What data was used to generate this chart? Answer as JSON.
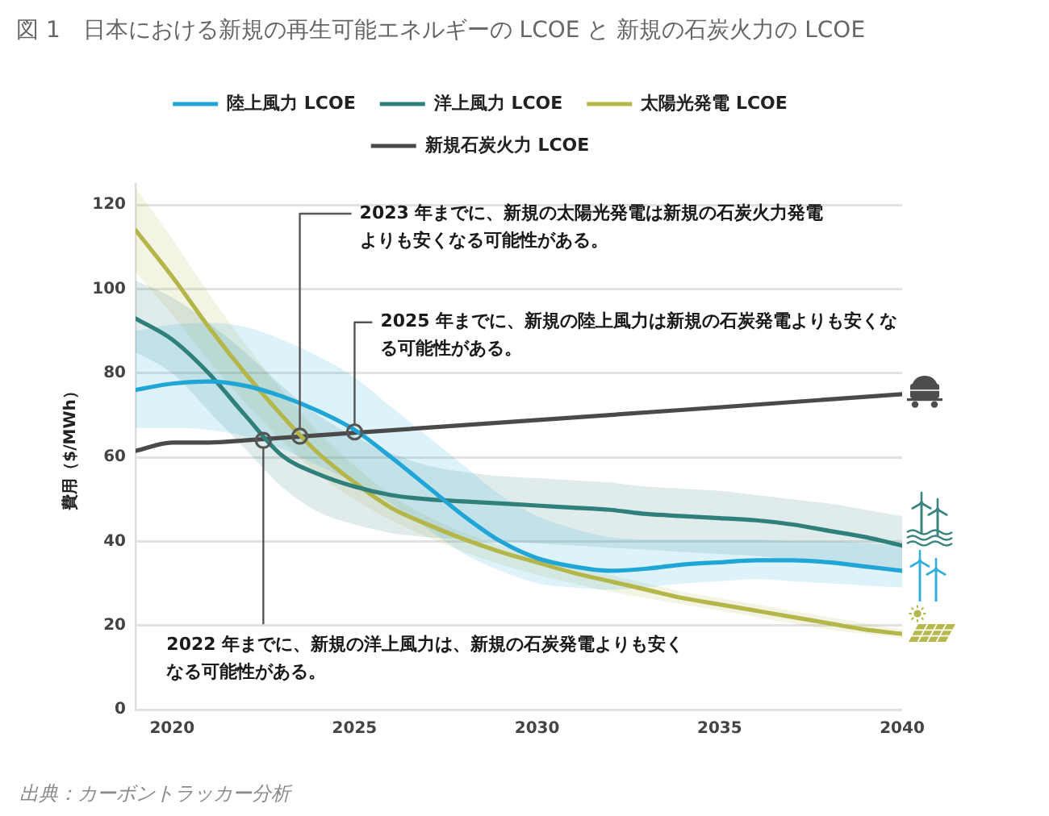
{
  "chart_data": {
    "type": "line",
    "title": "図 1　日本における新規の再生可能エネルギーの LCOE と 新規の石炭火力の LCOE",
    "ylabel": "費用（$/MWh）",
    "x": [
      2019,
      2020,
      2021,
      2022,
      2023,
      2024,
      2025,
      2026,
      2027,
      2028,
      2029,
      2030,
      2031,
      2032,
      2033,
      2034,
      2035,
      2036,
      2037,
      2038,
      2039,
      2040
    ],
    "series": [
      {
        "name": "陸上風力 LCOE",
        "color": "#1fa6d6",
        "values": [
          76,
          77.5,
          78,
          77,
          74.5,
          71,
          66.5,
          60,
          53,
          46,
          40,
          36,
          34,
          33,
          33.5,
          34.5,
          35,
          35.5,
          35.5,
          35,
          34,
          33
        ],
        "upper": [
          90,
          91.5,
          92,
          91,
          88,
          84,
          79,
          72,
          65,
          58,
          51,
          46,
          43,
          41,
          40.5,
          40.5,
          40.5,
          40.5,
          40,
          40,
          39.5,
          39
        ],
        "lower": [
          67,
          67,
          66.5,
          65,
          62,
          58,
          54,
          49,
          43,
          37,
          33,
          30,
          29,
          28.5,
          29,
          30,
          30.5,
          31,
          30.5,
          30,
          29.5,
          29
        ]
      },
      {
        "name": "洋上風力 LCOE",
        "color": "#2f7f7b",
        "values": [
          93,
          88,
          80,
          70,
          60.5,
          56,
          53,
          51,
          50,
          49.5,
          49,
          48.5,
          48,
          47.5,
          46.5,
          46,
          45.5,
          45,
          44,
          42.5,
          41,
          39
        ],
        "upper": [
          102,
          98,
          92,
          85,
          77,
          70,
          65,
          61,
          58,
          56.5,
          55.5,
          55,
          54.5,
          54,
          53,
          52.5,
          52,
          51,
          50,
          49,
          47.5,
          46
        ],
        "lower": [
          85,
          80,
          71,
          62,
          53,
          47,
          44,
          42,
          41,
          40.5,
          40,
          39.5,
          39,
          38.5,
          38,
          37.5,
          37,
          36.5,
          35.5,
          34.5,
          33.5,
          32.5
        ]
      },
      {
        "name": "太陽光発電 LCOE",
        "color": "#b4b64a",
        "values": [
          114,
          103,
          91,
          80,
          70,
          61,
          54,
          48,
          44,
          40.5,
          37.5,
          35,
          32.5,
          30.5,
          28.5,
          26.5,
          25,
          23.5,
          22,
          20.5,
          19,
          18
        ],
        "upper": [
          124,
          112,
          99,
          87,
          76,
          66,
          58,
          51,
          46,
          42,
          39,
          36.5,
          34,
          32,
          30,
          28,
          26.5,
          25,
          23.5,
          22,
          20.5,
          19
        ],
        "lower": [
          104,
          94,
          83,
          73,
          64,
          56,
          50,
          45,
          41,
          37.5,
          34.5,
          32,
          30,
          28,
          26.5,
          25,
          23.5,
          22,
          20.5,
          19,
          18,
          17
        ]
      },
      {
        "name": "新規石炭火力 LCOE",
        "color": "#4a4a4a",
        "x": [
          2019,
          2020,
          2021,
          2022,
          2040
        ],
        "values": [
          61.5,
          63.5,
          63.5,
          64,
          75
        ]
      }
    ],
    "xlim": [
      2019,
      2040
    ],
    "xticks": [
      2020,
      2025,
      2030,
      2035,
      2040
    ],
    "ylim": [
      0,
      125
    ],
    "yticks": [
      0,
      20,
      40,
      60,
      80,
      100,
      120
    ],
    "grid": "y",
    "legend": "top",
    "annotations": [
      {
        "text": "2023 年までに、新規の太陽光発電は新規の石炭火力発電よりも安くなる可能性がある。",
        "x": 2023.5,
        "y": 65
      },
      {
        "text": "2025 年までに、新規の陸上風力は新規の石炭発電よりも安くなる可能性がある。",
        "x": 2025,
        "y": 66
      },
      {
        "text": "2022 年までに、新規の洋上風力は、新規の石炭発電よりも安くなる可能性がある。",
        "x": 2022.5,
        "y": 64
      },
      "出典：カーボントラッカー分析"
    ]
  }
}
